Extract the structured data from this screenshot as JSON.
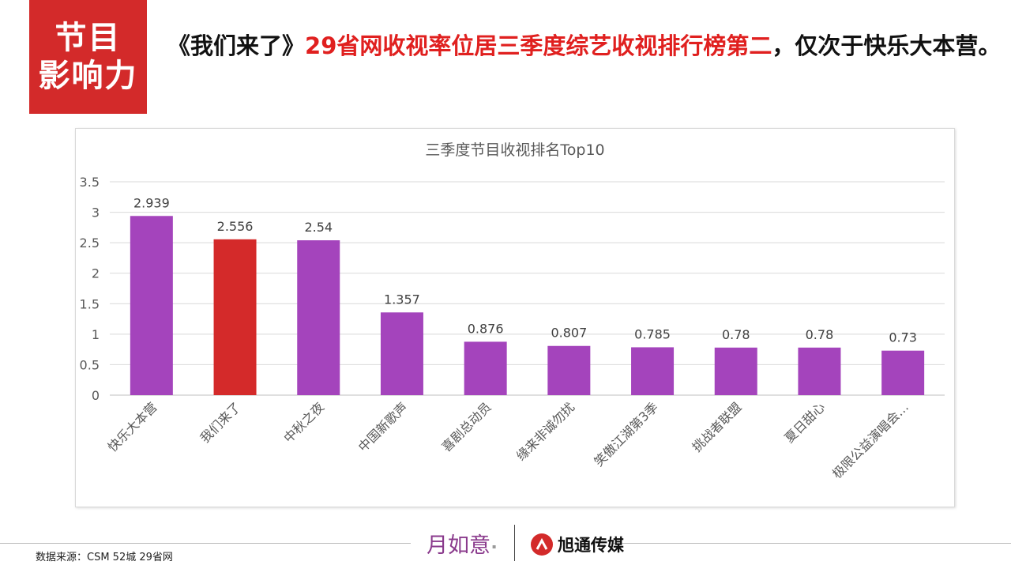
{
  "badge": {
    "line1": "节目",
    "line2": "影响力"
  },
  "headline": {
    "part1": "《我们来了》",
    "highlight": "29省网收视率位居三季度综艺收视排行榜第二",
    "part2": "，仅次于快乐大本营。"
  },
  "colors": {
    "bar": "#a444bc",
    "highlight_bar": "#d42a2a",
    "badge": "#d32a2a",
    "headline_highlight": "#e0201f"
  },
  "chart_data": {
    "type": "bar",
    "title": "三季度节目收视排名Top10",
    "categories": [
      "快乐大本营",
      "我们来了",
      "中秋之夜",
      "中国新歌声",
      "喜剧总动员",
      "缘来非诚勿扰",
      "笑傲江湖第3季",
      "挑战者联盟",
      "夏日甜心",
      "极限公益演唱会…"
    ],
    "values": [
      2.939,
      2.556,
      2.54,
      1.357,
      0.876,
      0.807,
      0.785,
      0.78,
      0.78,
      0.73
    ],
    "data_labels": [
      "2.939",
      "2.556",
      "2.54",
      "1.357",
      "0.876",
      "0.807",
      "0.785",
      "0.78",
      "0.78",
      "0.73"
    ],
    "highlight_index": 1,
    "ylim": [
      0,
      3.5
    ],
    "yticks": [
      "0",
      "0.5",
      "1",
      "1.5",
      "2",
      "2.5",
      "3",
      "3.5"
    ],
    "grid": true,
    "xlabel": "",
    "ylabel": ""
  },
  "footer": {
    "source": "数据来源：CSM  52城  29省网",
    "logo_left": "月如意",
    "logo_right": "旭通传媒"
  }
}
